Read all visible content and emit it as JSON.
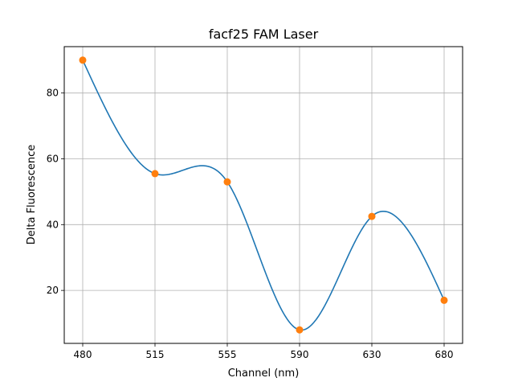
{
  "chart_data": {
    "type": "line",
    "title": "facf25 FAM Laser",
    "xlabel": "Channel (nm)",
    "ylabel": "Delta Fluorescence",
    "categories": [
      "480",
      "515",
      "555",
      "590",
      "630",
      "680"
    ],
    "series": [
      {
        "values": [
          90.0,
          55.5,
          53.0,
          8.0,
          42.5,
          17.0
        ],
        "marker_color": "#ff7f0e",
        "line_color": "#1f77b4",
        "smooth": true
      }
    ],
    "ylim": [
      3.9,
      94.1
    ],
    "yticks": [
      20,
      40,
      60,
      80
    ],
    "grid": true
  }
}
